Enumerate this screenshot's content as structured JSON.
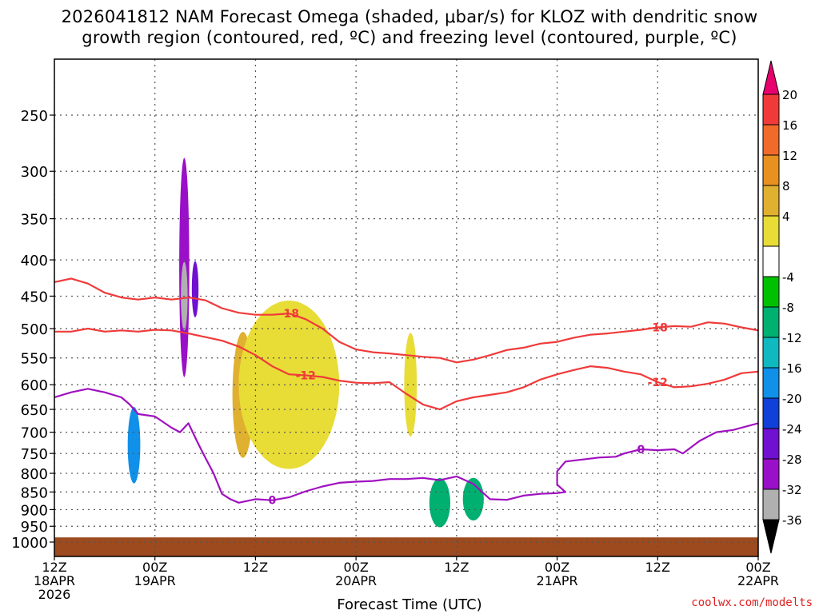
{
  "title_line1": "2026041812 NAM Forecast Omega (shaded, μbar/s) for KLOZ with dendritic snow",
  "title_line2": "growth region (contoured, red, ºC) and freezing level (contoured, purple, ºC)",
  "credit": "coolwx.com/modelts",
  "chart_data": {
    "type": "heatmap",
    "xlabel": "Forecast Time (UTC)",
    "ylabel": "",
    "x_ticks": [
      {
        "h": 0,
        "lines": [
          "12Z",
          "18APR",
          "2026"
        ]
      },
      {
        "h": 12,
        "lines": [
          "00Z",
          "19APR"
        ]
      },
      {
        "h": 24,
        "lines": [
          "12Z"
        ]
      },
      {
        "h": 36,
        "lines": [
          "00Z",
          "20APR"
        ]
      },
      {
        "h": 48,
        "lines": [
          "12Z"
        ]
      },
      {
        "h": 60,
        "lines": [
          "00Z",
          "21APR"
        ]
      },
      {
        "h": 72,
        "lines": [
          "12Z"
        ]
      },
      {
        "h": 84,
        "lines": [
          "00Z",
          "22APR"
        ]
      }
    ],
    "x_range_hours": [
      0,
      84
    ],
    "y_ticks": [
      250,
      300,
      350,
      400,
      450,
      500,
      550,
      600,
      650,
      700,
      750,
      800,
      850,
      900,
      950,
      1000
    ],
    "y_range_mb": [
      200,
      1050
    ],
    "y_scale": "log-pressure",
    "grid": true,
    "colorbar": {
      "labels": [
        "20",
        "16",
        "12",
        "8",
        "4",
        "-4",
        "-8",
        "-12",
        "-16",
        "-20",
        "-24",
        "-28",
        "-32",
        "-36"
      ],
      "colors": [
        "#e8006e",
        "#f03a3a",
        "#f06a2a",
        "#e89020",
        "#e0b030",
        "#e8dc36",
        "#ffffff",
        "#00c000",
        "#00b070",
        "#10b8c0",
        "#1090e8",
        "#1040d8",
        "#7010d0",
        "#9a10c8",
        "#b0b0b0",
        "#000000"
      ]
    },
    "dgz_contours": [
      {
        "label": "-18",
        "points": [
          [
            0,
            430
          ],
          [
            2,
            425
          ],
          [
            4,
            432
          ],
          [
            6,
            445
          ],
          [
            8,
            452
          ],
          [
            10,
            455
          ],
          [
            12,
            452
          ],
          [
            14,
            455
          ],
          [
            16,
            452
          ],
          [
            18,
            456
          ],
          [
            20,
            468
          ],
          [
            22,
            475
          ],
          [
            24,
            478
          ],
          [
            26,
            478
          ],
          [
            28,
            476
          ],
          [
            30,
            485
          ],
          [
            32,
            500
          ],
          [
            34,
            522
          ],
          [
            36,
            535
          ],
          [
            38,
            540
          ],
          [
            40,
            542
          ],
          [
            44,
            548
          ],
          [
            46,
            550
          ],
          [
            48,
            558
          ],
          [
            50,
            553
          ],
          [
            52,
            545
          ],
          [
            54,
            536
          ],
          [
            56,
            532
          ],
          [
            58,
            525
          ],
          [
            60,
            522
          ],
          [
            62,
            515
          ],
          [
            64,
            510
          ],
          [
            66,
            508
          ],
          [
            68,
            505
          ],
          [
            70,
            502
          ],
          [
            72,
            498
          ],
          [
            74,
            496
          ],
          [
            76,
            497
          ],
          [
            78,
            490
          ],
          [
            80,
            492
          ],
          [
            82,
            498
          ],
          [
            84,
            503
          ]
        ]
      },
      {
        "label": "-12",
        "points": [
          [
            0,
            505
          ],
          [
            2,
            505
          ],
          [
            4,
            500
          ],
          [
            6,
            505
          ],
          [
            8,
            503
          ],
          [
            10,
            505
          ],
          [
            12,
            502
          ],
          [
            14,
            503
          ],
          [
            16,
            508
          ],
          [
            18,
            514
          ],
          [
            20,
            520
          ],
          [
            22,
            530
          ],
          [
            24,
            545
          ],
          [
            26,
            565
          ],
          [
            28,
            580
          ],
          [
            30,
            582
          ],
          [
            32,
            585
          ],
          [
            34,
            592
          ],
          [
            36,
            596
          ],
          [
            38,
            597
          ],
          [
            40,
            595
          ],
          [
            42,
            618
          ],
          [
            44,
            640
          ],
          [
            46,
            650
          ],
          [
            48,
            633
          ],
          [
            50,
            625
          ],
          [
            52,
            620
          ],
          [
            54,
            615
          ],
          [
            56,
            605
          ],
          [
            58,
            590
          ],
          [
            60,
            580
          ],
          [
            62,
            572
          ],
          [
            64,
            565
          ],
          [
            66,
            568
          ],
          [
            68,
            575
          ],
          [
            70,
            580
          ],
          [
            72,
            595
          ],
          [
            74,
            605
          ],
          [
            76,
            603
          ],
          [
            78,
            598
          ],
          [
            80,
            590
          ],
          [
            82,
            578
          ],
          [
            84,
            575
          ]
        ]
      }
    ],
    "freezing_level_contours": [
      {
        "label": "0",
        "points": [
          [
            0,
            625
          ],
          [
            2,
            615
          ],
          [
            4,
            608
          ],
          [
            6,
            615
          ],
          [
            8,
            625
          ],
          [
            9,
            640
          ],
          [
            10,
            660
          ],
          [
            12,
            665
          ],
          [
            14,
            690
          ],
          [
            15,
            700
          ],
          [
            16,
            680
          ],
          [
            17,
            720
          ],
          [
            18,
            760
          ],
          [
            19,
            800
          ],
          [
            20,
            855
          ],
          [
            21,
            870
          ],
          [
            22,
            880
          ],
          [
            24,
            870
          ],
          [
            26,
            873
          ],
          [
            28,
            865
          ],
          [
            30,
            848
          ],
          [
            32,
            835
          ],
          [
            34,
            825
          ],
          [
            36,
            822
          ],
          [
            38,
            820
          ],
          [
            40,
            815
          ],
          [
            42,
            815
          ],
          [
            44,
            812
          ],
          [
            46,
            818
          ],
          [
            48,
            808
          ],
          [
            50,
            828
          ],
          [
            52,
            870
          ],
          [
            54,
            872
          ],
          [
            56,
            860
          ],
          [
            58,
            855
          ],
          [
            60,
            853
          ],
          [
            61,
            850
          ],
          [
            60,
            830
          ],
          [
            60,
            795
          ],
          [
            61,
            770
          ],
          [
            63,
            765
          ],
          [
            65,
            760
          ],
          [
            67,
            758
          ],
          [
            68,
            750
          ],
          [
            70,
            740
          ],
          [
            72,
            742
          ],
          [
            74,
            740
          ],
          [
            75,
            750
          ],
          [
            77,
            720
          ],
          [
            79,
            700
          ],
          [
            81,
            695
          ],
          [
            84,
            680
          ]
        ]
      }
    ],
    "omega_cells": [
      {
        "h": 15.5,
        "p": 410,
        "dh": 1.2,
        "dp": 280,
        "value": -28
      },
      {
        "h": 15.5,
        "p": 450,
        "dh": 0.8,
        "dp": 100,
        "value": -32
      },
      {
        "h": 16.8,
        "p": 440,
        "dh": 0.8,
        "dp": 80,
        "value": -24
      },
      {
        "h": 9.5,
        "p": 730,
        "dh": 1.5,
        "dp": 180,
        "value": -16
      },
      {
        "h": 22.5,
        "p": 620,
        "dh": 2.5,
        "dp": 250,
        "value": 8
      },
      {
        "h": 42.5,
        "p": 600,
        "dh": 1.5,
        "dp": 200,
        "value": 6
      },
      {
        "h": 28,
        "p": 600,
        "dh": 12,
        "dp": 320,
        "value": 4
      },
      {
        "h": 46,
        "p": 880,
        "dh": 2.5,
        "dp": 140,
        "value": -8
      },
      {
        "h": 50,
        "p": 870,
        "dh": 2.5,
        "dp": 120,
        "value": -8
      }
    ],
    "surface_band": {
      "color": "#9c4a1e",
      "top_mb": 985
    }
  }
}
